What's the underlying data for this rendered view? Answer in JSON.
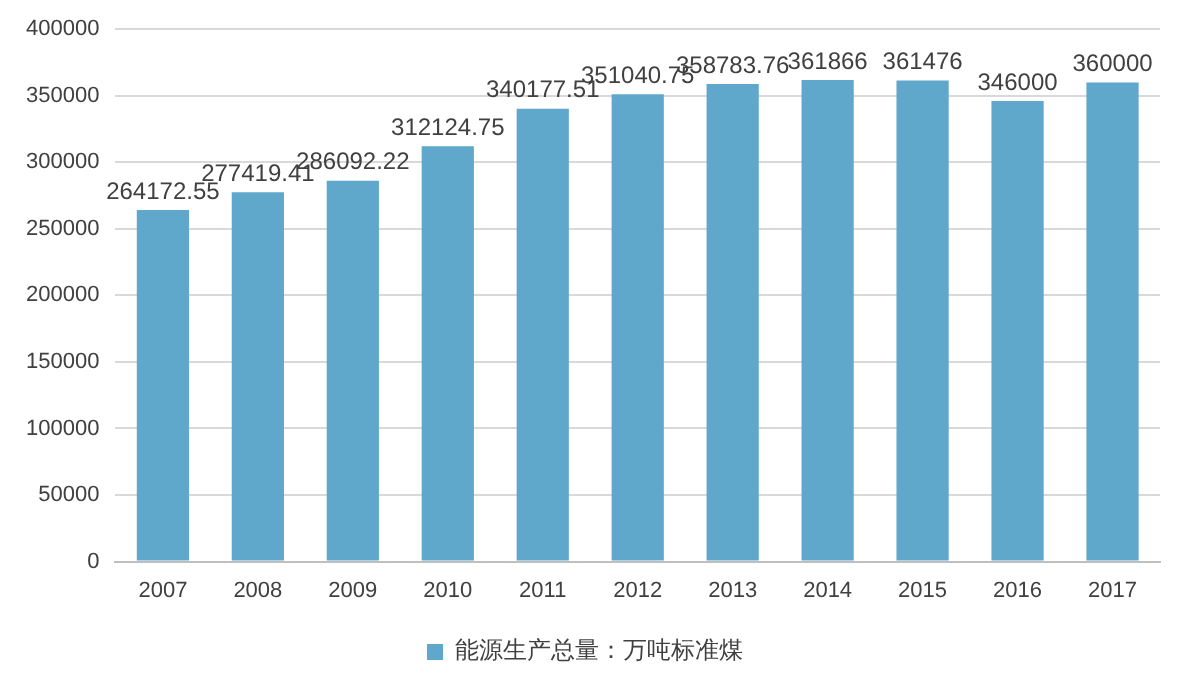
{
  "chart_data": {
    "type": "bar",
    "categories": [
      "2007",
      "2008",
      "2009",
      "2010",
      "2011",
      "2012",
      "2013",
      "2014",
      "2015",
      "2016",
      "2017"
    ],
    "series": [
      {
        "name": "能源生产总量：万吨标准煤",
        "color": "#5fa8cc",
        "values": [
          264172.55,
          277419.41,
          286092.22,
          312124.75,
          340177.51,
          351040.75,
          358783.76,
          361866,
          361476,
          346000,
          360000
        ]
      }
    ],
    "ylim": [
      0,
      400000
    ],
    "yticks": [
      0,
      50000,
      100000,
      150000,
      200000,
      250000,
      300000,
      350000,
      400000
    ],
    "grid": "y",
    "legend": "bottom",
    "data_labels": true
  }
}
